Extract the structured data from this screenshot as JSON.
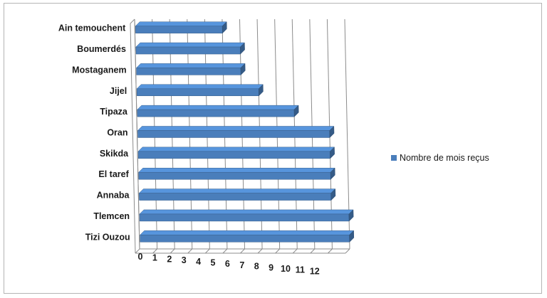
{
  "chart_data": {
    "type": "bar",
    "orientation": "horizontal",
    "style": "3d",
    "categories": [
      "Ain temouchent",
      "Boumerdés",
      "Mostaganem",
      "Jijel",
      "Tipaza",
      "Oran",
      "Skikda",
      "El taref",
      "Annaba",
      "Tlemcen",
      "Tizi Ouzou"
    ],
    "series": [
      {
        "name": "Nombre de mois reçus",
        "values": [
          5,
          6,
          6,
          7,
          9,
          11,
          11,
          11,
          11,
          12,
          12
        ],
        "color": "#4a7ebb"
      }
    ],
    "xlim": [
      0,
      12
    ],
    "xticks": [
      0,
      1,
      2,
      3,
      4,
      5,
      6,
      7,
      8,
      9,
      10,
      11,
      12
    ],
    "grid": true,
    "legend_position": "right"
  }
}
